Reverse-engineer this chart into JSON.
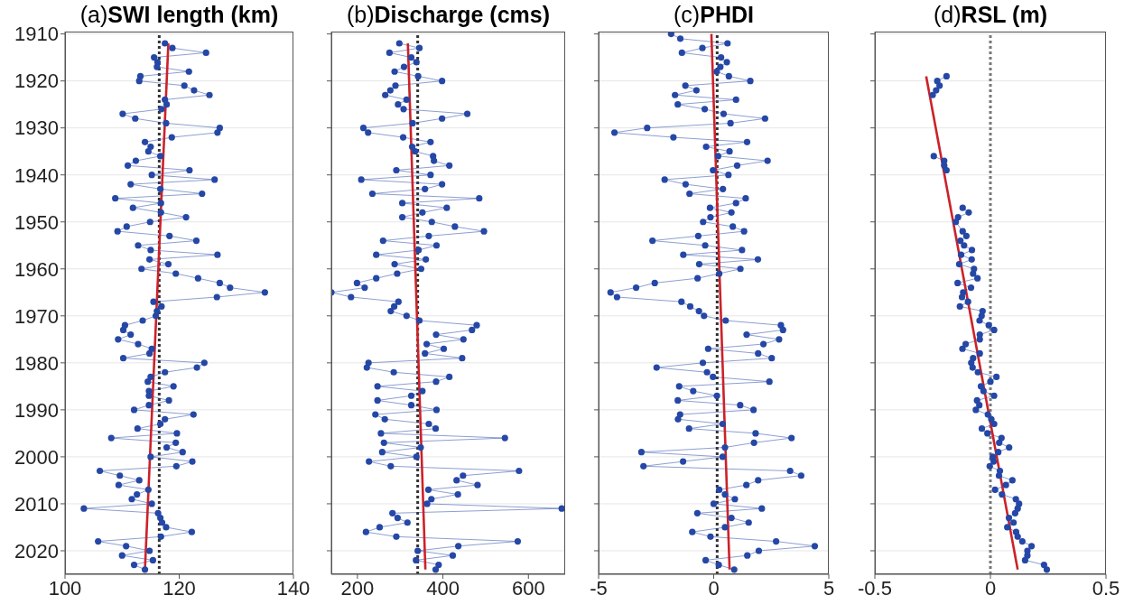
{
  "chart_data": [
    {
      "type": "line",
      "title": "(a)SWI length (km)",
      "marker": "circle",
      "grid": "y",
      "xlim": [
        100,
        140
      ],
      "xticks": [
        100,
        120,
        140
      ],
      "ylim": [
        2025,
        1909.5
      ],
      "yticks": [
        1910,
        1920,
        1930,
        1940,
        1950,
        1960,
        1970,
        1980,
        1990,
        2000,
        2010,
        2020
      ],
      "ref_lines": [
        {
          "axis": "x",
          "value": 116.5,
          "line_style": "dotted",
          "color": "#333333"
        }
      ],
      "series": [
        {
          "color": "#2547a6",
          "x": [
            117.5,
            118.8,
            124.7,
            115.6,
            116.2,
            116.1,
            121.7,
            113.2,
            113.0,
            120.9,
            122.6,
            125.3,
            117.5,
            117.8,
            116.9,
            110.1,
            112.3,
            117.7,
            127.1,
            126.7,
            118.7,
            114.0,
            115.0,
            114.6,
            116.7,
            112.4,
            111.0,
            121.8,
            115.2,
            126.2,
            111.5,
            116.7,
            124.0,
            108.8,
            116.8,
            111.9,
            116.8,
            121.2,
            114.9,
            110.8,
            109.2,
            118.3,
            123.0,
            112.8,
            115.0,
            126.7,
            114.8,
            118.1,
            113.4,
            119.4,
            123.3,
            127.1,
            128.9,
            135.0,
            126.6,
            115.5,
            116.9,
            116.1,
            115.9,
            113.6,
            110.5,
            110.2,
            111.5,
            109.3,
            112.8,
            115.2,
            114.8,
            110.2,
            124.4,
            123.1,
            117.5,
            115.0,
            114.5,
            119.0,
            114.7,
            114.7,
            118.2,
            114.7,
            112.1,
            122.5,
            117.5,
            116.7,
            112.7,
            119.6,
            108.1,
            119.4,
            117.8,
            120.6,
            115.0,
            122.3,
            119.5,
            106.1,
            109.6,
            113.0,
            109.4,
            114.6,
            112.6,
            111.7,
            115.2,
            103.3,
            116.3,
            116.7,
            117.0,
            117.7,
            122.2,
            116.8,
            105.8,
            110.7,
            114.8,
            110.0,
            115.4,
            112.1,
            114.0
          ],
          "values": [
            1912,
            1913,
            1914,
            1915,
            1916,
            1917,
            1918,
            1919,
            1920,
            1921,
            1922,
            1923,
            1924,
            1925,
            1926,
            1927,
            1928,
            1929,
            1930,
            1931,
            1932,
            1933,
            1934,
            1935,
            1936,
            1937,
            1938,
            1939,
            1940,
            1941,
            1942,
            1943,
            1944,
            1945,
            1946,
            1947,
            1948,
            1949,
            1950,
            1951,
            1952,
            1953,
            1954,
            1955,
            1956,
            1957,
            1958,
            1959,
            1960,
            1961,
            1962,
            1963,
            1964,
            1965,
            1966,
            1967,
            1968,
            1969,
            1970,
            1971,
            1972,
            1973,
            1974,
            1975,
            1976,
            1977,
            1978,
            1979,
            1980,
            1981,
            1982,
            1983,
            1984,
            1985,
            1986,
            1987,
            1988,
            1989,
            1990,
            1991,
            1992,
            1993,
            1994,
            1995,
            1996,
            1997,
            1998,
            1999,
            2000,
            2001,
            2002,
            2003,
            2004,
            2005,
            2006,
            2007,
            2008,
            2009,
            2010,
            2011,
            2012,
            2013,
            2014,
            2015,
            2016,
            2017,
            2018,
            2019,
            2020,
            2021,
            2022,
            2023,
            2024
          ]
        },
        {
          "color": "#cc2229",
          "marker": "none",
          "x": [
            118.1,
            114.0
          ],
          "values": [
            1912,
            2024
          ]
        }
      ]
    },
    {
      "type": "line",
      "title": "(b)Discharge (cms)",
      "marker": "circle",
      "grid": "y",
      "tick_labels": "x",
      "xlim": [
        139,
        686
      ],
      "xticks": [
        200,
        400,
        600
      ],
      "ylim": [
        2025,
        1909.5
      ],
      "yticks": [
        1910,
        1920,
        1930,
        1940,
        1950,
        1960,
        1970,
        1980,
        1990,
        2000,
        2010,
        2020
      ],
      "ref_lines": [
        {
          "axis": "x",
          "value": 341,
          "line_style": "dotted",
          "color": "#333333"
        }
      ],
      "series": [
        {
          "color": "#2547a6",
          "x": [
            298,
            345,
            275,
            326,
            338,
            309,
            287,
            342,
            398,
            289,
            277,
            265,
            315,
            295,
            308,
            457,
            398,
            329,
            214,
            225,
            307,
            371,
            328,
            335,
            377,
            379,
            415,
            291,
            371,
            209,
            398,
            358,
            235,
            485,
            305,
            409,
            352,
            305,
            374,
            428,
            496,
            367,
            260,
            385,
            343,
            244,
            360,
            287,
            349,
            293,
            244,
            199,
            217,
            139,
            185,
            296,
            286,
            278,
            315,
            345,
            479,
            468,
            384,
            448,
            362,
            402,
            358,
            445,
            226,
            222,
            285,
            415,
            384,
            247,
            352,
            326,
            247,
            326,
            385,
            242,
            264,
            367,
            383,
            255,
            545,
            262,
            348,
            258,
            338,
            227,
            278,
            578,
            447,
            432,
            481,
            366,
            435,
            373,
            363,
            678,
            282,
            294,
            317,
            252,
            220,
            291,
            575,
            436,
            341,
            423,
            337,
            390,
            383
          ],
          "values": [
            1912,
            1913,
            1914,
            1915,
            1916,
            1917,
            1918,
            1919,
            1920,
            1921,
            1922,
            1923,
            1924,
            1925,
            1926,
            1927,
            1928,
            1929,
            1930,
            1931,
            1932,
            1933,
            1934,
            1935,
            1936,
            1937,
            1938,
            1939,
            1940,
            1941,
            1942,
            1943,
            1944,
            1945,
            1946,
            1947,
            1948,
            1949,
            1950,
            1951,
            1952,
            1953,
            1954,
            1955,
            1956,
            1957,
            1958,
            1959,
            1960,
            1961,
            1962,
            1963,
            1964,
            1965,
            1966,
            1967,
            1968,
            1969,
            1970,
            1971,
            1972,
            1973,
            1974,
            1975,
            1976,
            1977,
            1978,
            1979,
            1980,
            1981,
            1982,
            1983,
            1984,
            1985,
            1986,
            1987,
            1988,
            1989,
            1990,
            1991,
            1992,
            1993,
            1994,
            1995,
            1996,
            1997,
            1998,
            1999,
            2000,
            2001,
            2002,
            2003,
            2004,
            2005,
            2006,
            2007,
            2008,
            2009,
            2010,
            2011,
            2012,
            2013,
            2014,
            2015,
            2016,
            2017,
            2018,
            2019,
            2020,
            2021,
            2022,
            2023,
            2024
          ]
        },
        {
          "color": "#cc2229",
          "marker": "none",
          "x": [
            318,
            359
          ],
          "values": [
            1912,
            2024
          ]
        }
      ]
    },
    {
      "type": "line",
      "title": "(c)PHDI",
      "marker": "circle",
      "grid": "y",
      "tick_labels": "x",
      "xlim": [
        -5,
        5
      ],
      "xticks": [
        -5,
        0,
        5
      ],
      "ylim": [
        2025,
        1909.5
      ],
      "yticks": [
        1910,
        1920,
        1930,
        1940,
        1950,
        1960,
        1970,
        1980,
        1990,
        2000,
        2010,
        2020
      ],
      "ref_lines": [
        {
          "axis": "x",
          "value": 0.15,
          "line_style": "dotted",
          "color": "#333333"
        }
      ],
      "series": [
        {
          "color": "#2547a6",
          "x": [
            -1.85,
            -1.45,
            0.6,
            -0.49,
            -1.38,
            0.32,
            0.57,
            0.29,
            0.13,
            0.66,
            1.59,
            -1.23,
            -0.75,
            -1.68,
            0.97,
            -1.56,
            -0.39,
            0.43,
            2.23,
            0.73,
            -2.89,
            -4.31,
            -1.75,
            1.45,
            -0.33,
            0.69,
            0.19,
            2.34,
            1.02,
            -0.03,
            0.64,
            -2.13,
            -1.22,
            0.4,
            -1.05,
            1.39,
            0.97,
            -0.16,
            0.77,
            -0.14,
            -0.46,
            0.83,
            1.32,
            -0.67,
            -2.66,
            -0.37,
            1.23,
            -1.32,
            1.92,
            -0.63,
            1.16,
            0.24,
            -0.7,
            -2.56,
            -3.37,
            -4.48,
            -4.2,
            -1.4,
            -1.02,
            -0.64,
            -0.42,
            0.52,
            2.92,
            3.01,
            1.43,
            2.84,
            2.16,
            -0.24,
            1.93,
            2.52,
            -0.47,
            -2.48,
            -0.29,
            -0.03,
            2.42,
            -1.5,
            -0.89,
            0.14,
            -1.56,
            1.15,
            1.73,
            -1.46,
            -1.55,
            0.39,
            -1.07,
            1.82,
            3.38,
            1.75,
            0.49,
            -3.14,
            0.39,
            -1.33,
            -3.05,
            3.32,
            3.8,
            1.93,
            1.42,
            0.24,
            0.49,
            0.92,
            0.0,
            2.09,
            -0.71,
            0.77,
            1.52,
            0.49,
            -0.93,
            -0.14,
            2.71,
            4.39,
            1.96,
            1.46,
            -0.35,
            0.22,
            0.89
          ],
          "values": [
            1910,
            1911,
            1912,
            1913,
            1914,
            1915,
            1916,
            1917,
            1918,
            1919,
            1920,
            1921,
            1922,
            1923,
            1924,
            1925,
            1926,
            1927,
            1928,
            1929,
            1930,
            1931,
            1932,
            1933,
            1934,
            1935,
            1936,
            1937,
            1938,
            1939,
            1940,
            1941,
            1942,
            1943,
            1944,
            1945,
            1946,
            1947,
            1948,
            1949,
            1950,
            1951,
            1952,
            1953,
            1954,
            1955,
            1956,
            1957,
            1958,
            1959,
            1960,
            1961,
            1962,
            1963,
            1964,
            1965,
            1966,
            1967,
            1968,
            1969,
            1970,
            1971,
            1972,
            1973,
            1974,
            1975,
            1976,
            1977,
            1978,
            1979,
            1980,
            1981,
            1982,
            1983,
            1984,
            1985,
            1986,
            1987,
            1988,
            1989,
            1990,
            1991,
            1992,
            1993,
            1994,
            1995,
            1996,
            1997,
            1998,
            1999,
            2000,
            2001,
            2002,
            2003,
            2004,
            2005,
            2006,
            2007,
            2008,
            2009,
            2010,
            2011,
            2012,
            2013,
            2014,
            2015,
            2016,
            2017,
            2018,
            2019,
            2020,
            2021,
            2022,
            2023,
            2024
          ]
        },
        {
          "color": "#cc2229",
          "marker": "none",
          "x": [
            -0.1,
            0.69
          ],
          "values": [
            1910,
            2024
          ]
        }
      ]
    },
    {
      "type": "line",
      "title": "(d)RSL (m)",
      "marker": "circle",
      "grid": "y",
      "tick_labels": "x",
      "xlim": [
        -0.5,
        0.5
      ],
      "xticks": [
        -0.5,
        0,
        0.5
      ],
      "ylim": [
        2025,
        1909.5
      ],
      "yticks": [
        1910,
        1920,
        1930,
        1940,
        1950,
        1960,
        1970,
        1980,
        1990,
        2000,
        2010,
        2020
      ],
      "ref_lines": [
        {
          "axis": "x",
          "value": 0,
          "line_style": "dotted",
          "color": "#777777"
        }
      ],
      "series": [
        {
          "color": "#2547a6",
          "x": [
            -0.19,
            -0.23,
            -0.22,
            -0.235,
            -0.25
          ],
          "values": [
            1919,
            1920,
            1921,
            1922,
            1923
          ]
        },
        {
          "color": "#2547a6",
          "x": [
            -0.245,
            -0.2,
            -0.2,
            -0.19
          ],
          "values": [
            1936,
            1937,
            1938,
            1939
          ]
        },
        {
          "color": "#2547a6",
          "x": [
            -0.12,
            -0.094,
            -0.14,
            -0.15,
            -0.12,
            -0.104,
            -0.13,
            -0.114,
            -0.08,
            -0.127,
            -0.081,
            -0.135,
            -0.071,
            -0.075,
            -0.056,
            -0.142,
            -0.084,
            -0.118,
            -0.123,
            -0.097,
            -0.132,
            -0.034,
            -0.038,
            -0.047,
            -0.007,
            0.016,
            -0.046,
            -0.046,
            -0.107,
            -0.121,
            -0.046,
            -0.075,
            -0.083,
            -0.077,
            -0.054,
            0.026,
            0.0,
            -0.041,
            -0.03,
            0.016,
            -0.058,
            -0.048,
            -0.063,
            -0.011,
            0.004,
            0.016,
            -0.037,
            -0.013,
            0.048,
            0.038,
            0.081,
            0.034,
            0.01,
            0.014,
            -0.003,
            0.041,
            0.037,
            0.095,
            0.067,
            0.02,
            0.05,
            0.11,
            0.124,
            0.118,
            0.107,
            0.08,
            0.1,
            0.073,
            0.111,
            0.118,
            0.138,
            0.178,
            0.16,
            0.16,
            0.15,
            0.232,
            0.244
          ],
          "values": [
            1947,
            1948,
            1949,
            1950,
            1952,
            1953,
            1954,
            1955,
            1956,
            1957,
            1958,
            1959,
            1960,
            1961,
            1962,
            1963,
            1964,
            1965,
            1966,
            1967,
            1968,
            1969,
            1970,
            1971,
            1972,
            1973,
            1974,
            1975,
            1976,
            1977,
            1978,
            1979,
            1980,
            1981,
            1982,
            1983,
            1984,
            1985,
            1986,
            1987,
            1988,
            1989,
            1990,
            1991,
            1992,
            1993,
            1994,
            1995,
            1996,
            1997,
            1998,
            1999,
            2000,
            2001,
            2002,
            2003,
            2004,
            2005,
            2006,
            2007,
            2008,
            2009,
            2010,
            2011,
            2012,
            2013,
            2014,
            2015,
            2016,
            2017,
            2018,
            2019,
            2020,
            2021,
            2022,
            2023,
            2024
          ]
        },
        {
          "color": "#cc2229",
          "marker": "none",
          "x": [
            -0.278,
            0.118
          ],
          "values": [
            1919,
            2024
          ]
        }
      ]
    }
  ]
}
